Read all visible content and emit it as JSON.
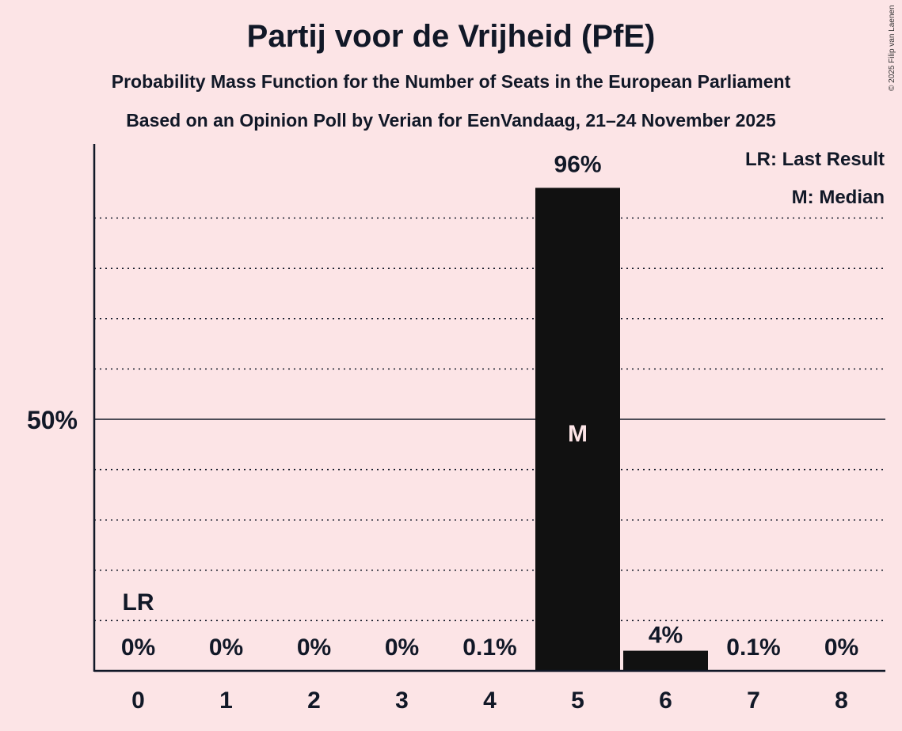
{
  "chart_data": {
    "type": "bar",
    "title": "Partij voor de Vrijheid (PfE)",
    "subtitle": "Probability Mass Function for the Number of Seats in the European Parliament",
    "subtitle2": "Based on an Opinion Poll by Verian for EenVandaag, 21–24 November 2025",
    "categories": [
      "0",
      "1",
      "2",
      "3",
      "4",
      "5",
      "6",
      "7",
      "8"
    ],
    "values": [
      0,
      0,
      0,
      0,
      0.1,
      96,
      4,
      0.1,
      0
    ],
    "value_labels": [
      "0%",
      "0%",
      "0%",
      "0%",
      "0.1%",
      "96%",
      "4%",
      "0.1%",
      "0%"
    ],
    "ylim": [
      0,
      100
    ],
    "ytick_label": "50%",
    "ytick_value": 50,
    "grid_step": 10,
    "last_result_index": 0,
    "last_result_marker": "LR",
    "median_index": 5,
    "median_marker": "M",
    "legend": [
      "LR: Last Result",
      "M: Median"
    ],
    "legend_position": "top-right",
    "bar_color": "#111111",
    "background": "#fce4e6"
  },
  "watermark": "© 2025 Filip van Laenen"
}
